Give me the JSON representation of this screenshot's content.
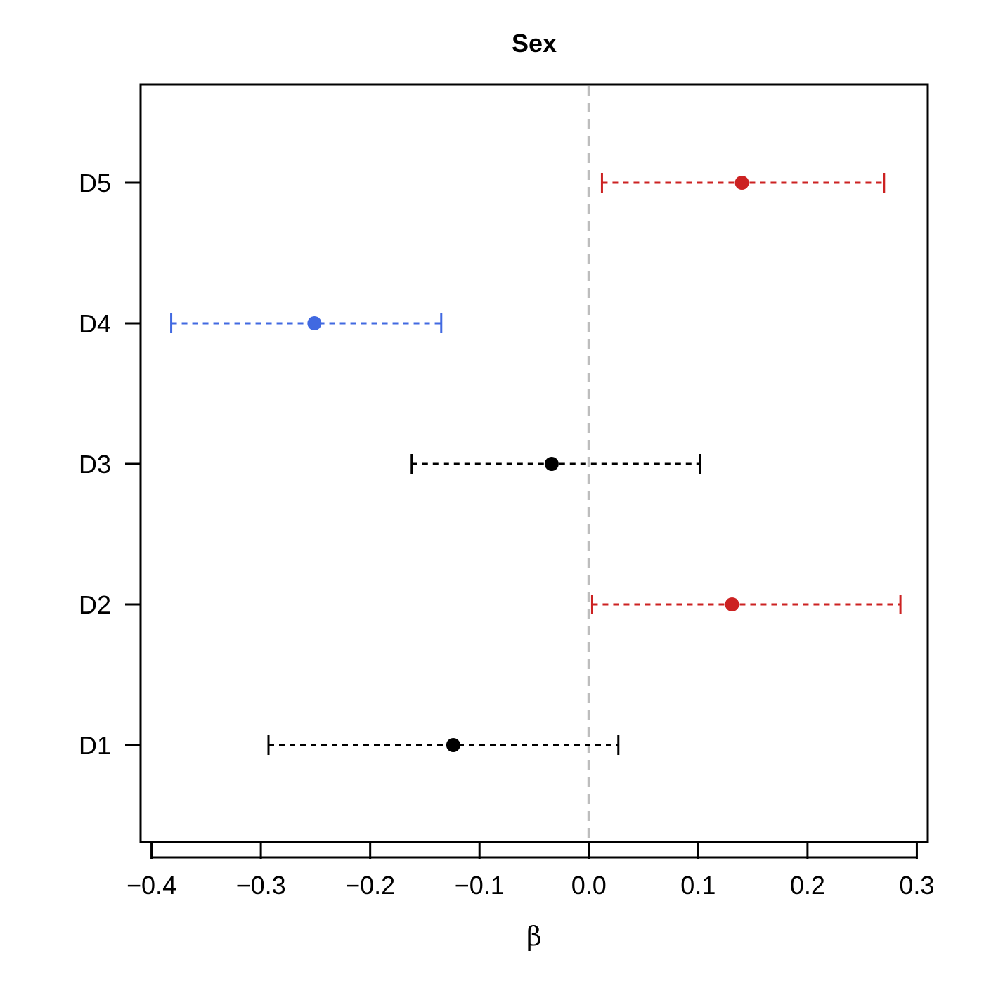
{
  "chart_data": {
    "type": "forest",
    "title": "Sex",
    "xlabel": "β",
    "ylabel": "",
    "xlim": [
      -0.41,
      0.31
    ],
    "x_ticks": [
      "−0.4",
      "−0.3",
      "−0.2",
      "−0.1",
      "0.0",
      "0.1",
      "0.2",
      "0.3"
    ],
    "x_tick_values": [
      -0.4,
      -0.3,
      -0.2,
      -0.1,
      0.0,
      0.1,
      0.2,
      0.3
    ],
    "reference_line": 0.0,
    "reference_color": "#bdbdbd",
    "grid": false,
    "categories": [
      "D1",
      "D2",
      "D3",
      "D4",
      "D5"
    ],
    "points": [
      {
        "label": "D1",
        "estimate": -0.124,
        "lower": -0.293,
        "upper": 0.027,
        "color": "#000000"
      },
      {
        "label": "D2",
        "estimate": 0.131,
        "lower": 0.003,
        "upper": 0.285,
        "color": "#cc2222"
      },
      {
        "label": "D3",
        "estimate": -0.034,
        "lower": -0.162,
        "upper": 0.102,
        "color": "#000000"
      },
      {
        "label": "D4",
        "estimate": -0.251,
        "lower": -0.382,
        "upper": -0.135,
        "color": "#4169e1"
      },
      {
        "label": "D5",
        "estimate": 0.14,
        "lower": 0.012,
        "upper": 0.27,
        "color": "#cc2222"
      }
    ]
  }
}
